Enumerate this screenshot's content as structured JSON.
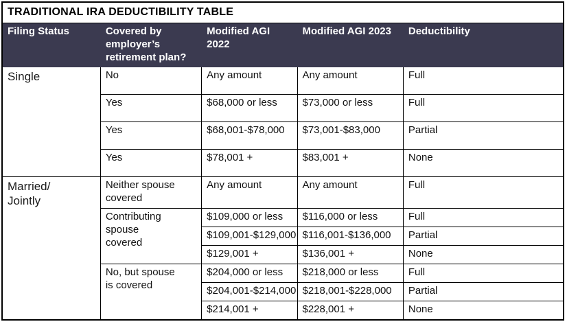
{
  "title": "TRADITIONAL IRA DEDUCTIBILITY TABLE",
  "colors": {
    "header_bg": "#3b3a50",
    "header_text": "#ffffff",
    "border": "#000000",
    "body_bg": "#ffffff",
    "title_text": "#000000"
  },
  "columns": [
    "Filing Status",
    "Covered by employer’s retirement plan?",
    "Modified AGI 2022",
    "Modified AGI 2023",
    "Deductibility"
  ],
  "table": {
    "sections": [
      {
        "filing_status": "Single",
        "groups": [
          {
            "covered": "No",
            "rows": [
              {
                "agi_2022": "Any amount",
                "agi_2023": "Any amount",
                "deductibility": "Full"
              }
            ]
          },
          {
            "covered": "Yes",
            "rows": [
              {
                "agi_2022": "$68,000 or less",
                "agi_2023": "$73,000 or less",
                "deductibility": "Full"
              }
            ]
          },
          {
            "covered": "Yes",
            "rows": [
              {
                "agi_2022": "$68,001-$78,000",
                "agi_2023": "$73,001-$83,000",
                "deductibility": "Partial"
              }
            ]
          },
          {
            "covered": "Yes",
            "rows": [
              {
                "agi_2022": "$78,001 +",
                "agi_2023": "$83,001 +",
                "deductibility": "None"
              }
            ]
          }
        ]
      },
      {
        "filing_status": "Married/\nJointly",
        "groups": [
          {
            "covered": "Neither spouse\ncovered",
            "rows": [
              {
                "agi_2022": "Any amount",
                "agi_2023": "Any amount",
                "deductibility": "Full"
              }
            ]
          },
          {
            "covered": "Contributing\nspouse\ncovered",
            "rows": [
              {
                "agi_2022": "$109,000 or less",
                "agi_2023": "$116,000 or less",
                "deductibility": "Full"
              },
              {
                "agi_2022": "$109,001-$129,000",
                "agi_2023": "$116,001-$136,000",
                "deductibility": "Partial"
              },
              {
                "agi_2022": "$129,001 +",
                "agi_2023": "$136,001 +",
                "deductibility": "None"
              }
            ]
          },
          {
            "covered": "No, but spouse\nis covered",
            "rows": [
              {
                "agi_2022": "$204,000 or less",
                "agi_2023": "$218,000 or less",
                "deductibility": "Full"
              },
              {
                "agi_2022": "$204,001-$214,000",
                "agi_2023": "$218,001-$228,000",
                "deductibility": "Partial"
              },
              {
                "agi_2022": "$214,001 +",
                "agi_2023": "$228,001 +",
                "deductibility": "None"
              }
            ]
          }
        ]
      }
    ]
  }
}
